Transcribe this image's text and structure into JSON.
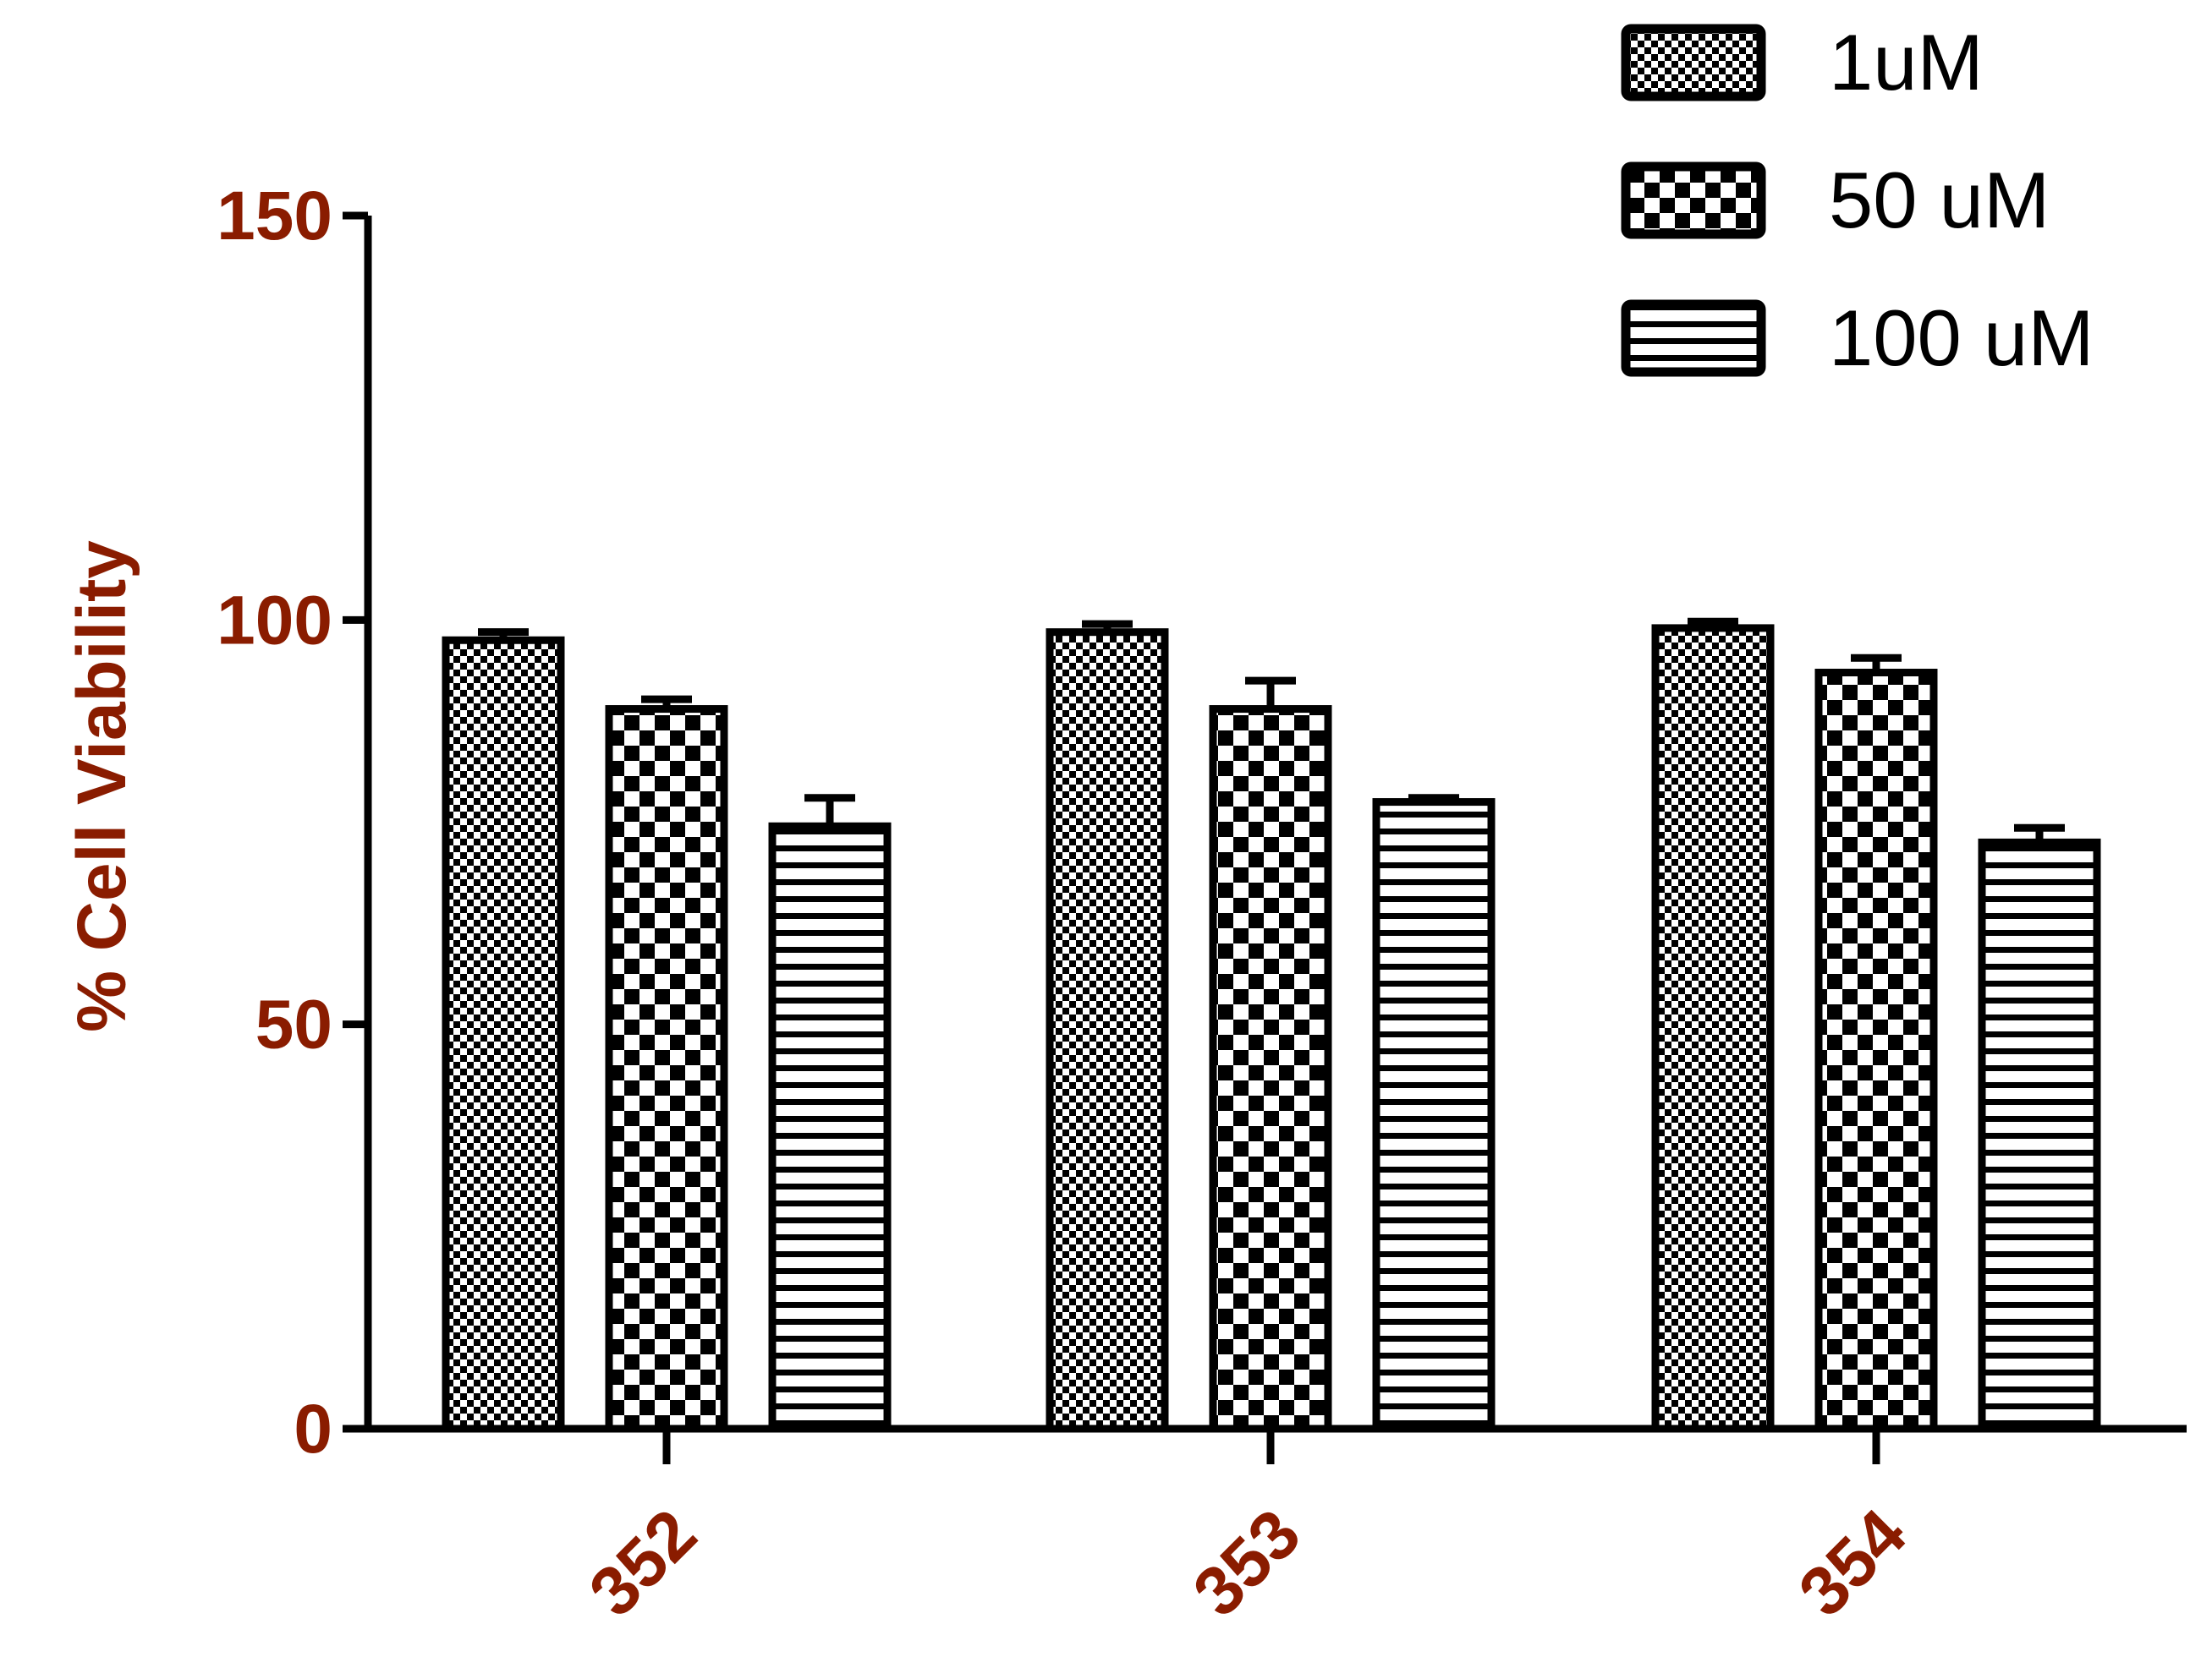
{
  "chart_data": {
    "type": "bar",
    "title": "",
    "xlabel": "",
    "ylabel": "% Cell Viability",
    "ylim": [
      0,
      150
    ],
    "yticks": [
      0,
      50,
      100,
      150
    ],
    "categories": [
      "352",
      "353",
      "354"
    ],
    "series": [
      {
        "name": "1uM",
        "pattern": "fine-checker",
        "values": [
          97.5,
          98.5,
          99.0
        ],
        "errors": [
          1.0,
          1.0,
          0.8
        ]
      },
      {
        "name": "50 uM",
        "pattern": "coarse-checker",
        "values": [
          89.0,
          89.0,
          93.5
        ],
        "errors": [
          1.2,
          3.5,
          1.8
        ]
      },
      {
        "name": "100 uM",
        "pattern": "horizontal-stripes",
        "values": [
          74.5,
          77.5,
          72.5
        ],
        "errors": [
          3.5,
          0.5,
          1.8
        ]
      }
    ],
    "legend_position": "top-right",
    "grid": false,
    "colors": {
      "ink": "#000000",
      "label": "#8a1c00",
      "background": "#ffffff"
    }
  }
}
